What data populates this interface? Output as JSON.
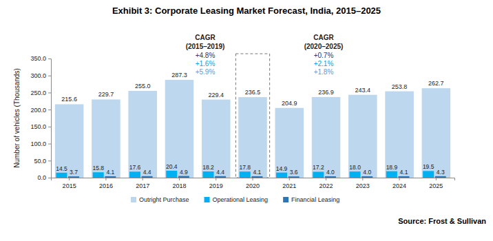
{
  "chart_data": {
    "type": "bar",
    "title": "Exhibit 3: Corporate Leasing Market Forecast, India, 2015–2025",
    "y_label": "Number of vehicles (Thousands)",
    "categories": [
      "2015",
      "2016",
      "2017",
      "2018",
      "2019",
      "2020",
      "2021",
      "2022",
      "2023",
      "2024",
      "2025"
    ],
    "series": [
      {
        "name": "Outright Purchase",
        "color": "#bdd7ee",
        "values": [
          215.6,
          229.7,
          255.0,
          287.3,
          229.4,
          236.5,
          204.9,
          236.9,
          243.4,
          253.8,
          262.7
        ],
        "value_labels": [
          "215.6",
          "229.7",
          "255.0",
          "287.3",
          "229.4",
          "236.5",
          "204.9",
          "236.9",
          "243.4",
          "253.8",
          "262.7"
        ]
      },
      {
        "name": "Operational Leasing",
        "color": "#00b0f0",
        "values": [
          14.5,
          15.8,
          17.6,
          20.4,
          18.2,
          17.8,
          14.9,
          17.2,
          18.0,
          18.9,
          19.5
        ],
        "value_labels": [
          "14.5",
          "15.8",
          "17.6",
          "20.4",
          "18.2",
          "17.8",
          "14.9",
          "17.2",
          "18.0",
          "18.9",
          "19.5"
        ]
      },
      {
        "name": "Financial Leasing",
        "color": "#2e75b6",
        "values": [
          3.7,
          4.1,
          4.4,
          4.9,
          4.4,
          4.1,
          3.6,
          4.0,
          4.0,
          4.1,
          4.3
        ],
        "value_labels": [
          "3.7",
          "4.1",
          "4.4",
          "4.9",
          "4.4",
          "4.1",
          "3.6",
          "4.0",
          "4.0",
          "4.1",
          "4.3"
        ]
      }
    ],
    "ylim": [
      0,
      350
    ],
    "yticks": [
      {
        "value": 0,
        "label": "0.0"
      },
      {
        "value": 50,
        "label": "50.0"
      },
      {
        "value": 100,
        "label": "100.0"
      },
      {
        "value": 150,
        "label": "150.0"
      },
      {
        "value": 200,
        "label": "200.0"
      },
      {
        "value": 250,
        "label": "250.0"
      },
      {
        "value": 300,
        "label": "300.0"
      },
      {
        "value": 350,
        "label": "350.0"
      }
    ],
    "grid": false,
    "data_labels": true,
    "legend": "bottom",
    "annotations": [
      {
        "title": "CAGR",
        "period": "(2015–2019)",
        "values": [
          "+4.8%",
          "+1.6%",
          "+5.9%"
        ]
      },
      {
        "title": "CAGR",
        "period": "(2020–2025)",
        "values": [
          "+0.7%",
          "+2.1%",
          "+1.8%"
        ]
      }
    ],
    "source": "Source: Frost & Sullivan"
  }
}
